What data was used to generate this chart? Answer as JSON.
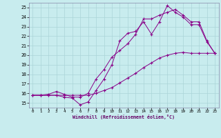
{
  "title": "",
  "xlabel": "Windchill (Refroidissement éolien,°C)",
  "bg_color": "#c8ecee",
  "grid_color": "#aad4d8",
  "line_color": "#880088",
  "xlim": [
    -0.5,
    23.5
  ],
  "ylim": [
    14.5,
    25.5
  ],
  "xticks": [
    0,
    1,
    2,
    3,
    4,
    5,
    6,
    7,
    8,
    9,
    10,
    11,
    12,
    13,
    14,
    15,
    16,
    17,
    18,
    19,
    20,
    21,
    22,
    23
  ],
  "yticks": [
    15,
    16,
    17,
    18,
    19,
    20,
    21,
    22,
    23,
    24,
    25
  ],
  "line1_x": [
    0,
    1,
    2,
    3,
    4,
    5,
    6,
    7,
    8,
    9,
    10,
    11,
    12,
    13,
    14,
    15,
    16,
    17,
    18,
    19,
    20,
    21,
    22,
    23
  ],
  "line1_y": [
    15.8,
    15.8,
    15.8,
    15.8,
    15.6,
    15.5,
    14.8,
    15.1,
    16.3,
    17.5,
    19.0,
    21.5,
    22.3,
    22.5,
    23.5,
    22.2,
    23.5,
    25.2,
    24.5,
    24.0,
    23.2,
    23.2,
    21.4,
    20.2
  ],
  "line2_x": [
    0,
    1,
    2,
    3,
    4,
    5,
    6,
    7,
    8,
    9,
    10,
    11,
    12,
    13,
    14,
    15,
    16,
    17,
    18,
    19,
    20,
    21,
    22,
    23
  ],
  "line2_y": [
    15.8,
    15.8,
    15.9,
    16.2,
    15.9,
    15.6,
    15.6,
    16.0,
    17.5,
    18.5,
    19.8,
    20.5,
    21.2,
    22.2,
    23.8,
    23.8,
    24.2,
    24.5,
    24.8,
    24.2,
    23.5,
    23.5,
    21.5,
    20.2
  ],
  "line3_x": [
    0,
    1,
    2,
    3,
    4,
    5,
    6,
    7,
    8,
    9,
    10,
    11,
    12,
    13,
    14,
    15,
    16,
    17,
    18,
    19,
    20,
    21,
    22,
    23
  ],
  "line3_y": [
    15.8,
    15.8,
    15.8,
    15.8,
    15.8,
    15.8,
    15.8,
    15.8,
    16.0,
    16.3,
    16.6,
    17.1,
    17.6,
    18.1,
    18.7,
    19.2,
    19.7,
    20.0,
    20.2,
    20.3,
    20.2,
    20.2,
    20.2,
    20.2
  ]
}
